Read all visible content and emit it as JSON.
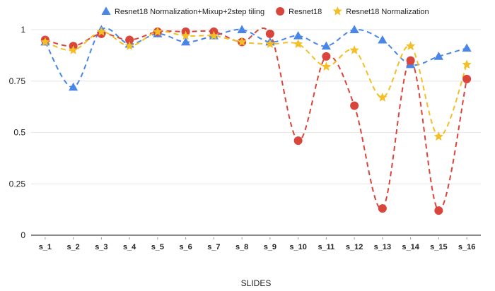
{
  "chart_data": {
    "type": "line",
    "xlabel": "SLIDES",
    "ylabel": "",
    "ylim": [
      0,
      1
    ],
    "yticks": [
      "0",
      "0.25",
      "0.5",
      "0.75",
      "1"
    ],
    "categories": [
      "s_1",
      "s_2",
      "s_3",
      "s_4",
      "s_5",
      "s_6",
      "s_7",
      "s_8",
      "s_9",
      "s_10",
      "s_11",
      "s_12",
      "s_13",
      "s_14",
      "s_15",
      "s_16"
    ],
    "legend_position": "top",
    "grid": true,
    "series": [
      {
        "name": "Resnet18 Normalization+Mixup+2step tiling",
        "marker": "triangle",
        "line": "dashed",
        "color": "#4a86e8",
        "values": [
          0.94,
          0.72,
          1.0,
          0.93,
          0.98,
          0.94,
          0.97,
          1.0,
          0.94,
          0.97,
          0.92,
          1.0,
          0.95,
          0.83,
          0.87,
          0.91
        ]
      },
      {
        "name": "Resnet18",
        "marker": "circle",
        "line": "dashed",
        "color": "#d9453a",
        "values": [
          0.95,
          0.92,
          0.98,
          0.95,
          0.99,
          0.99,
          0.99,
          0.94,
          0.98,
          0.46,
          0.87,
          0.63,
          0.13,
          0.85,
          0.12,
          0.76
        ]
      },
      {
        "name": "Resnet18 Normalization",
        "marker": "star",
        "line": "dashed",
        "color": "#f4bf26",
        "values": [
          0.94,
          0.9,
          0.99,
          0.92,
          0.99,
          0.97,
          0.97,
          0.94,
          0.93,
          0.93,
          0.82,
          0.9,
          0.67,
          0.92,
          0.48,
          0.83
        ]
      }
    ]
  }
}
